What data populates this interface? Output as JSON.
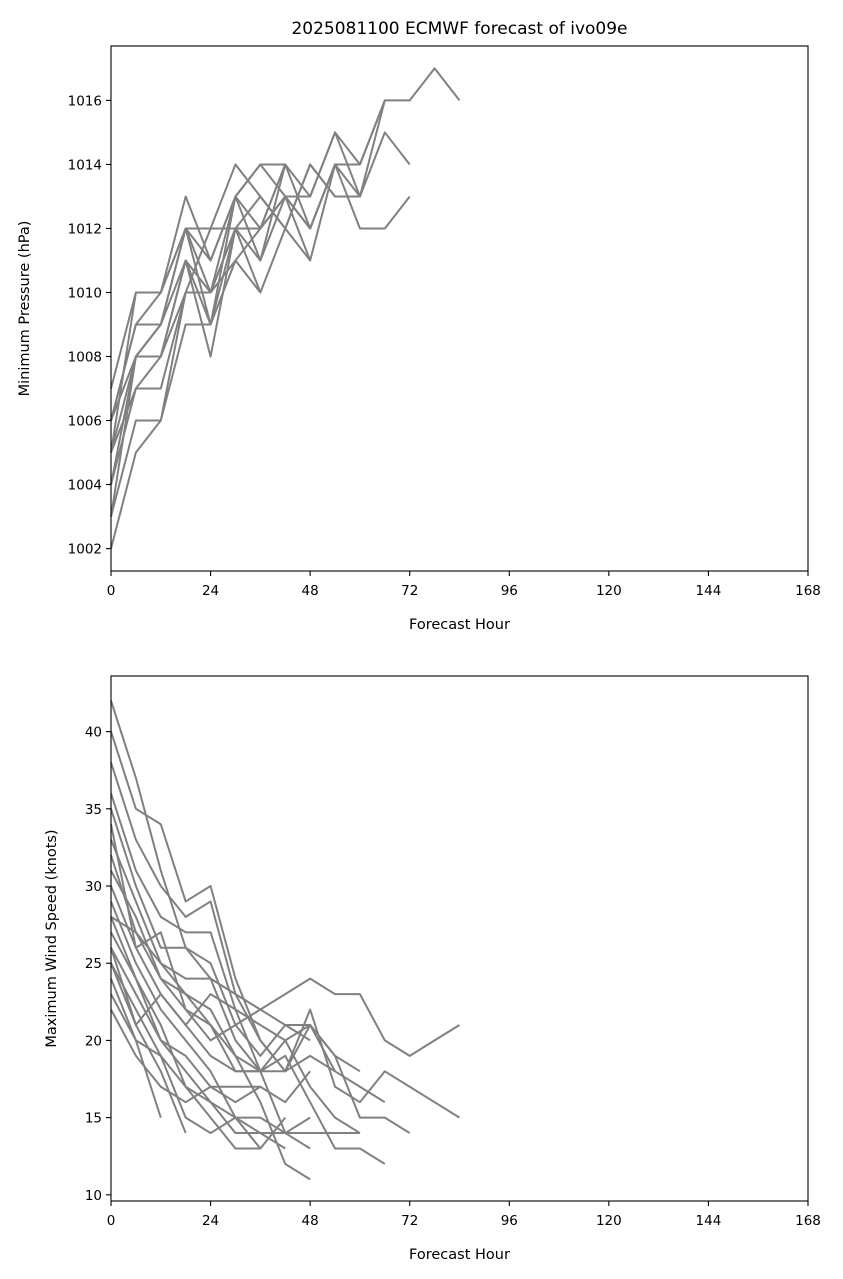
{
  "chart_data": [
    {
      "type": "line",
      "title": "2025081100 ECMWF forecast of ivo09e",
      "xlabel": "Forecast Hour",
      "ylabel": "Minimum Pressure (hPa)",
      "xlim": [
        0,
        168
      ],
      "ylim": [
        1001.3,
        1017.7
      ],
      "xticks": [
        0,
        24,
        48,
        72,
        96,
        120,
        144,
        168
      ],
      "xtick_labels": [
        "0",
        "24",
        "48",
        "72",
        "96",
        "120",
        "144",
        "168"
      ],
      "yticks": [
        1002,
        1004,
        1006,
        1008,
        1010,
        1012,
        1014,
        1016
      ],
      "ytick_labels": [
        "1002",
        "1004",
        "1006",
        "1008",
        "1010",
        "1012",
        "1014",
        "1016"
      ],
      "grid": false,
      "line_color": "#808080",
      "series": [
        {
          "x": [
            0,
            6,
            12,
            18,
            24,
            30,
            36,
            42,
            48,
            54,
            60,
            66,
            72
          ],
          "y": [
            1002,
            1005,
            1006,
            1009,
            1009,
            1011,
            1012,
            1013,
            1011,
            1014,
            1012,
            1012,
            1013
          ]
        },
        {
          "x": [
            0,
            6,
            12,
            18,
            24,
            30,
            36,
            42,
            48,
            54,
            60,
            66,
            72,
            78,
            84
          ],
          "y": [
            1003,
            1006,
            1006,
            1010,
            1010,
            1012,
            1012,
            1014,
            1013,
            1015,
            1014,
            1016,
            1016,
            1017,
            1016
          ]
        },
        {
          "x": [
            0,
            6,
            12,
            18,
            24,
            30,
            36,
            42,
            48,
            54,
            60,
            66,
            72
          ],
          "y": [
            1004,
            1007,
            1008,
            1011,
            1009,
            1012,
            1013,
            1012,
            1014,
            1013,
            1013,
            1015,
            1014
          ]
        },
        {
          "x": [
            0,
            6,
            12,
            18,
            24,
            30,
            36,
            42,
            48,
            54,
            60,
            66
          ],
          "y": [
            1005,
            1008,
            1009,
            1012,
            1010,
            1013,
            1012,
            1014,
            1012,
            1014,
            1013,
            1016
          ]
        },
        {
          "x": [
            0,
            6,
            12,
            18,
            24,
            30,
            36,
            42,
            48,
            54
          ],
          "y": [
            1006,
            1009,
            1010,
            1013,
            1011,
            1013,
            1014,
            1013,
            1012,
            1014
          ]
        },
        {
          "x": [
            0,
            6,
            12,
            18,
            24,
            30,
            36,
            42,
            48
          ],
          "y": [
            1007,
            1010,
            1010,
            1012,
            1012,
            1014,
            1013,
            1012,
            1011
          ]
        },
        {
          "x": [
            0,
            6,
            12,
            18,
            24,
            30,
            36,
            42,
            48,
            54,
            60
          ],
          "y": [
            1004,
            1008,
            1008,
            1011,
            1008,
            1012,
            1011,
            1013,
            1013,
            1015,
            1013
          ]
        },
        {
          "x": [
            0,
            6,
            12,
            18,
            24,
            30,
            36,
            42,
            48,
            54
          ],
          "y": [
            1005,
            1007,
            1007,
            1010,
            1010,
            1011,
            1010,
            1012,
            1014,
            1013
          ]
        },
        {
          "x": [
            0,
            6,
            12,
            18,
            24,
            30,
            36,
            42
          ],
          "y": [
            1006,
            1009,
            1009,
            1012,
            1011,
            1013,
            1014,
            1014
          ]
        },
        {
          "x": [
            0,
            6,
            12,
            18,
            24,
            30,
            36,
            42,
            48,
            54,
            60,
            66
          ],
          "y": [
            1003,
            1008,
            1009,
            1011,
            1010,
            1012,
            1012,
            1013,
            1012,
            1014,
            1014,
            1016
          ]
        },
        {
          "x": [
            0,
            6,
            12,
            18,
            24,
            30,
            36,
            42
          ],
          "y": [
            1005,
            1010,
            1010,
            1012,
            1009,
            1013,
            1011,
            1014
          ]
        },
        {
          "x": [
            0,
            6,
            12,
            18,
            24,
            30,
            36
          ],
          "y": [
            1006,
            1008,
            1008,
            1010,
            1012,
            1012,
            1010
          ]
        }
      ]
    },
    {
      "type": "line",
      "xlabel": "Forecast Hour",
      "ylabel": "Maximum Wind Speed (knots)",
      "xlim": [
        0,
        168
      ],
      "ylim": [
        9.6,
        43.6
      ],
      "xticks": [
        0,
        24,
        48,
        72,
        96,
        120,
        144,
        168
      ],
      "xtick_labels": [
        "0",
        "24",
        "48",
        "72",
        "96",
        "120",
        "144",
        "168"
      ],
      "yticks": [
        10,
        15,
        20,
        25,
        30,
        35,
        40
      ],
      "ytick_labels": [
        "10",
        "15",
        "20",
        "25",
        "30",
        "35",
        "40"
      ],
      "grid": false,
      "line_color": "#808080",
      "series": [
        {
          "x": [
            0,
            6,
            12,
            18,
            24,
            30,
            36,
            42,
            48,
            54,
            60,
            66,
            72,
            78,
            84
          ],
          "y": [
            42,
            37,
            31,
            26,
            24,
            23,
            22,
            23,
            24,
            23,
            23,
            20,
            19,
            20,
            21
          ]
        },
        {
          "x": [
            0,
            6,
            12,
            18,
            24,
            30,
            36,
            42,
            48,
            54,
            60,
            66,
            72,
            78,
            84
          ],
          "y": [
            40,
            35,
            34,
            29,
            30,
            24,
            20,
            18,
            22,
            17,
            16,
            18,
            17,
            16,
            15
          ]
        },
        {
          "x": [
            0,
            6,
            12,
            18,
            24,
            30,
            36,
            42,
            48,
            54,
            60,
            66
          ],
          "y": [
            38,
            33,
            30,
            28,
            29,
            23,
            20,
            18,
            19,
            18,
            17,
            16
          ]
        },
        {
          "x": [
            0,
            6,
            12,
            18,
            24,
            30,
            36,
            42,
            48,
            54,
            60,
            66
          ],
          "y": [
            36,
            31,
            28,
            27,
            27,
            22,
            18,
            19,
            16,
            13,
            13,
            12
          ]
        },
        {
          "x": [
            0,
            6,
            12,
            18,
            24,
            30,
            36,
            42,
            48,
            54,
            60
          ],
          "y": [
            35,
            30,
            26,
            26,
            25,
            21,
            19,
            21,
            21,
            19,
            18
          ]
        },
        {
          "x": [
            0,
            6,
            12,
            18,
            24,
            30,
            36,
            42,
            48
          ],
          "y": [
            33,
            29,
            25,
            24,
            24,
            20,
            18,
            14,
            15
          ]
        },
        {
          "x": [
            0,
            6,
            12,
            18,
            24,
            30,
            36,
            42,
            48
          ],
          "y": [
            32,
            27,
            24,
            23,
            22,
            19,
            16,
            12,
            11
          ]
        },
        {
          "x": [
            0,
            6,
            12,
            18,
            24,
            30,
            36,
            42,
            48,
            54,
            60
          ],
          "y": [
            31,
            28,
            24,
            22,
            21,
            18,
            18,
            20,
            17,
            15,
            14
          ]
        },
        {
          "x": [
            0,
            6,
            12,
            18,
            24,
            30,
            36,
            42,
            48,
            54,
            60,
            66,
            72
          ],
          "y": [
            30,
            26,
            23,
            21,
            19,
            18,
            18,
            18,
            21,
            19,
            15,
            15,
            14
          ]
        },
        {
          "x": [
            0,
            6,
            12,
            18,
            24,
            30,
            36,
            42,
            48
          ],
          "y": [
            29,
            25,
            22,
            20,
            18,
            15,
            14,
            14,
            13
          ]
        },
        {
          "x": [
            0,
            6,
            12,
            18,
            24,
            30,
            36,
            42
          ],
          "y": [
            28,
            24,
            21,
            17,
            16,
            14,
            14,
            13
          ]
        },
        {
          "x": [
            0,
            6,
            12,
            18,
            24,
            30,
            36
          ],
          "y": [
            27,
            24,
            20,
            19,
            17,
            16,
            17
          ]
        },
        {
          "x": [
            0,
            6,
            12,
            18,
            24,
            30,
            36,
            42,
            48,
            54,
            60
          ],
          "y": [
            26,
            23,
            20,
            18,
            16,
            15,
            15,
            14,
            14,
            14,
            14
          ]
        },
        {
          "x": [
            0,
            6,
            12,
            18,
            24,
            30,
            36,
            42
          ],
          "y": [
            25,
            22,
            19,
            15,
            14,
            15,
            13,
            15
          ]
        },
        {
          "x": [
            0,
            6,
            12,
            18
          ],
          "y": [
            25,
            21,
            18,
            14
          ]
        },
        {
          "x": [
            0,
            6,
            12
          ],
          "y": [
            24,
            20,
            15
          ]
        },
        {
          "x": [
            0,
            6,
            12,
            18,
            24,
            30,
            36
          ],
          "y": [
            23,
            20,
            19,
            17,
            15,
            13,
            13
          ]
        },
        {
          "x": [
            0,
            6,
            12,
            18,
            24,
            30,
            36,
            42,
            48
          ],
          "y": [
            22,
            19,
            17,
            16,
            17,
            17,
            17,
            16,
            18
          ]
        },
        {
          "x": [
            0,
            6,
            12,
            18,
            24,
            30,
            36,
            42,
            48,
            54
          ],
          "y": [
            26,
            21,
            23,
            21,
            23,
            22,
            21,
            20,
            21,
            18
          ]
        },
        {
          "x": [
            0,
            6,
            12,
            18,
            24,
            30,
            36,
            42,
            48
          ],
          "y": [
            34,
            26,
            27,
            22,
            20,
            21,
            22,
            21,
            20
          ]
        },
        {
          "x": [
            0,
            6,
            12,
            18,
            24,
            30,
            36
          ],
          "y": [
            28,
            27,
            25,
            23,
            21,
            19,
            18
          ]
        }
      ]
    }
  ]
}
